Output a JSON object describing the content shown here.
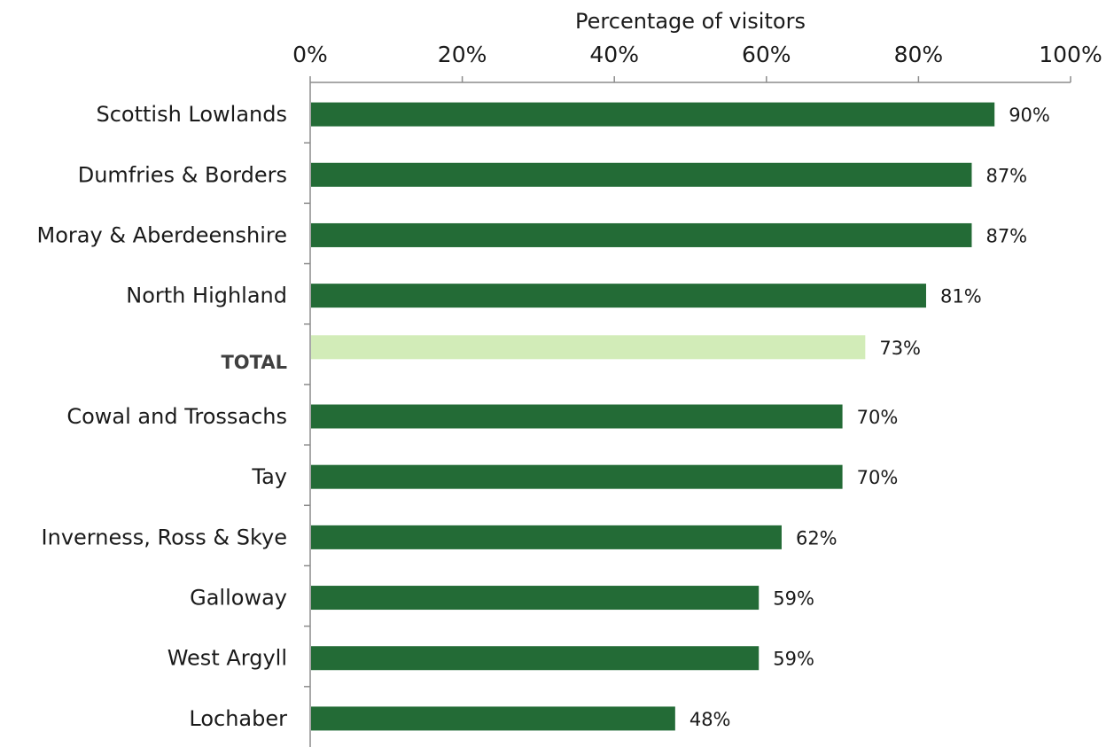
{
  "chart_data": {
    "type": "bar",
    "orientation": "horizontal",
    "xlabel": "Percentage of visitors",
    "xlim": [
      0,
      100
    ],
    "x_ticks": [
      "0%",
      "20%",
      "40%",
      "60%",
      "80%",
      "100%"
    ],
    "x_axis_position": "top",
    "grid": false,
    "categories": [
      "Scottish Lowlands",
      "Dumfries & Borders",
      "Moray & Aberdeenshire",
      "North Highland",
      "TOTAL",
      "Cowal and Trossachs",
      "Tay",
      "Inverness, Ross & Skye",
      "Galloway",
      "West Argyll",
      "Lochaber"
    ],
    "values": [
      90,
      87,
      87,
      81,
      73,
      70,
      70,
      62,
      59,
      59,
      48
    ],
    "data_labels": [
      "90%",
      "87%",
      "87%",
      "81%",
      "73%",
      "70%",
      "70%",
      "62%",
      "59%",
      "59%",
      "48%"
    ],
    "highlight_category": "TOTAL",
    "colors": {
      "bar": "#236b36",
      "highlight": "#d2ecb8"
    }
  }
}
